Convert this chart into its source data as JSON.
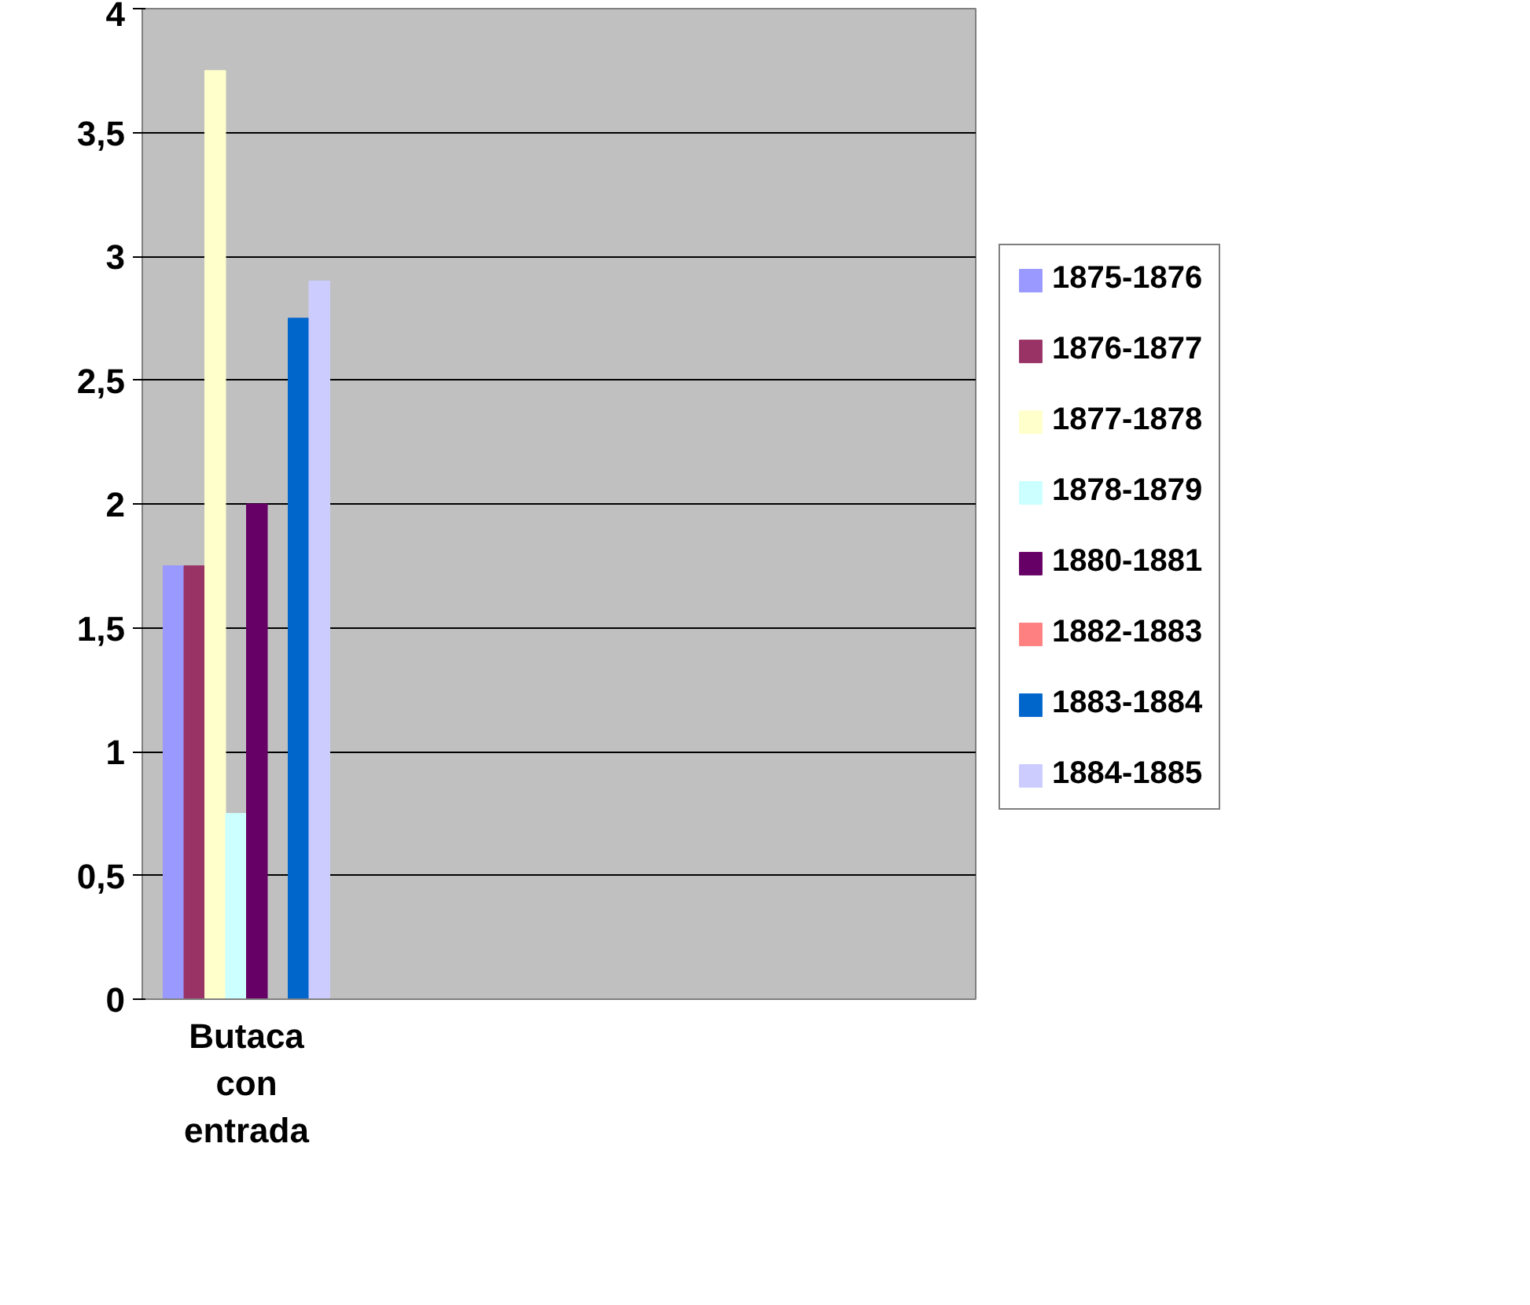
{
  "chart_data": {
    "type": "bar",
    "categories": [
      "Butaca con entrada",
      null,
      null,
      null
    ],
    "series": [
      {
        "name": "1875-1876",
        "color": "#9999ff",
        "values": [
          1.75,
          null,
          null,
          null
        ]
      },
      {
        "name": "1876-1877",
        "color": "#993366",
        "values": [
          1.75,
          null,
          null,
          null
        ]
      },
      {
        "name": "1877-1878",
        "color": "#ffffcc",
        "values": [
          3.75,
          null,
          null,
          null
        ]
      },
      {
        "name": "1878-1879",
        "color": "#ccffff",
        "values": [
          0.75,
          null,
          null,
          null
        ]
      },
      {
        "name": "1880-1881",
        "color": "#660066",
        "values": [
          2,
          null,
          null,
          null
        ]
      },
      {
        "name": "1882-1883",
        "color": "#ff8080",
        "values": [
          0,
          null,
          null,
          null
        ]
      },
      {
        "name": "1883-1884",
        "color": "#0066cc",
        "values": [
          2.75,
          null,
          null,
          null
        ]
      },
      {
        "name": "1884-1885",
        "color": "#ccccff",
        "values": [
          2.9,
          null,
          null,
          null
        ]
      }
    ],
    "ylim": [
      0,
      4
    ],
    "yticks": [
      0,
      {
        "value": 0.5,
        "label": "0,5"
      },
      1,
      {
        "value": 1.5,
        "label": "1,5"
      },
      2,
      {
        "value": 2.5,
        "label": "2,5"
      },
      3,
      {
        "value": 3.5,
        "label": "3,5"
      },
      4
    ],
    "grid": "y",
    "legend": "right"
  }
}
